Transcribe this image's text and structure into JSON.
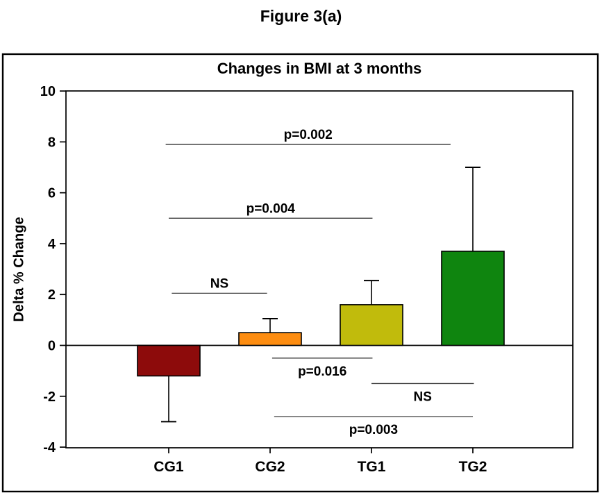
{
  "figure": {
    "caption": "Figure 3(a)"
  },
  "chart_data": {
    "type": "bar",
    "title": "Changes in BMI at 3 months",
    "xlabel": "",
    "ylabel": "Delta % Change",
    "categories": [
      "CG1",
      "CG2",
      "TG1",
      "TG2"
    ],
    "values": [
      -1.2,
      0.5,
      1.6,
      3.7
    ],
    "error_bar_tips": [
      -3.0,
      1.05,
      2.55,
      7.0
    ],
    "error_magnitudes": [
      1.8,
      0.55,
      0.95,
      3.3
    ],
    "bar_colors": [
      "#8D0B0B",
      "#FD8D11",
      "#C1BB0C",
      "#0F850F"
    ],
    "bar_edge_color": "#000000",
    "ylim": [
      -4,
      10
    ],
    "yticks": [
      10,
      8,
      6,
      4,
      2,
      0,
      -2,
      -4
    ],
    "grid": false,
    "legend": "none",
    "zero_line": true,
    "annotations": [
      {
        "label": "p=0.002",
        "groups": "CG1 vs TG2",
        "y": 7.9,
        "x1": -0.03,
        "x2": 2.78,
        "label_side": "above"
      },
      {
        "label": "p=0.004",
        "groups": "CG1 vs TG1",
        "y": 5.0,
        "x1": 0.0,
        "x2": 2.01,
        "label_side": "above"
      },
      {
        "label": "NS",
        "groups": "CG1 vs CG2",
        "y": 2.05,
        "x1": 0.03,
        "x2": 0.97,
        "label_side": "above"
      },
      {
        "label": "p=0.016",
        "groups": "CG2 vs TG1",
        "y": -0.5,
        "x1": 1.02,
        "x2": 2.01,
        "label_side": "below"
      },
      {
        "label": "NS",
        "groups": "TG1 vs TG2",
        "y": -1.5,
        "x1": 2.0,
        "x2": 3.01,
        "label_side": "below"
      },
      {
        "label": "p=0.003",
        "groups": "CG2 vs TG2",
        "y": -2.8,
        "x1": 1.04,
        "x2": 3.0,
        "label_side": "below"
      }
    ]
  }
}
